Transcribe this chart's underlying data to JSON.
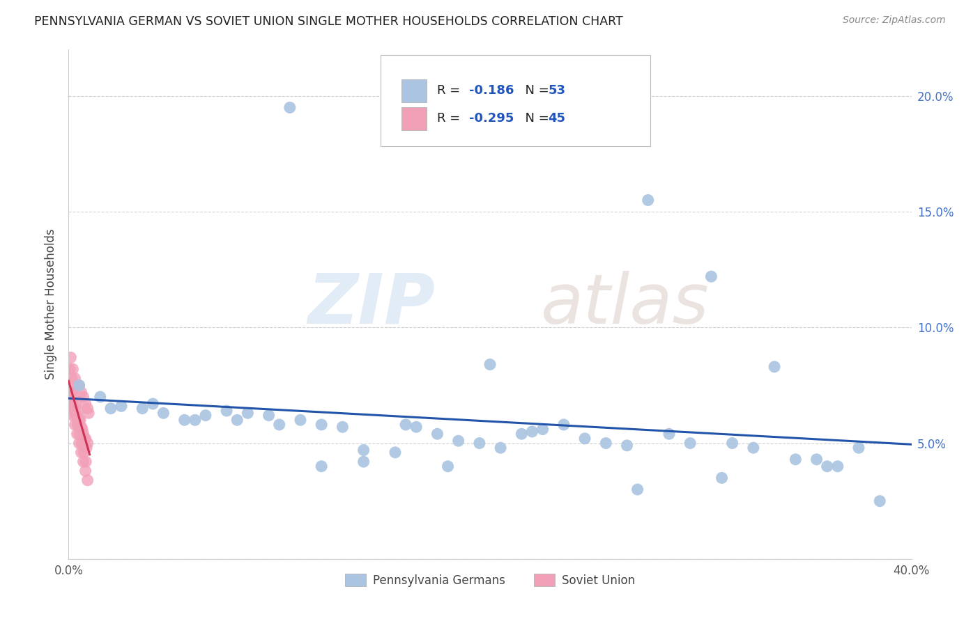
{
  "title": "PENNSYLVANIA GERMAN VS SOVIET UNION SINGLE MOTHER HOUSEHOLDS CORRELATION CHART",
  "source": "Source: ZipAtlas.com",
  "ylabel": "Single Mother Households",
  "xlim": [
    0.0,
    0.4
  ],
  "ylim": [
    0.0,
    0.22
  ],
  "legend_r1": "-0.186",
  "legend_n1": "53",
  "legend_r2": "-0.295",
  "legend_n2": "45",
  "blue_color": "#aac4e2",
  "pink_color": "#f2a0b8",
  "blue_line_color": "#2255aa",
  "pink_line_color": "#cc3355",
  "watermark_zip": "ZIP",
  "watermark_atlas": "atlas",
  "grid_color": "#cccccc",
  "spine_color": "#cccccc",
  "title_color": "#222222",
  "source_color": "#888888",
  "ylabel_color": "#444444",
  "right_tick_color": "#4472c4",
  "legend_text_color": "#222222",
  "legend_value_color": "#2255bb",
  "blue_x": [
    0.105,
    0.005,
    0.015,
    0.025,
    0.035,
    0.045,
    0.055,
    0.065,
    0.075,
    0.085,
    0.095,
    0.11,
    0.12,
    0.13,
    0.14,
    0.155,
    0.165,
    0.175,
    0.185,
    0.195,
    0.205,
    0.215,
    0.225,
    0.235,
    0.245,
    0.255,
    0.265,
    0.275,
    0.285,
    0.295,
    0.305,
    0.315,
    0.325,
    0.335,
    0.345,
    0.355,
    0.365,
    0.375,
    0.385,
    0.02,
    0.04,
    0.06,
    0.08,
    0.1,
    0.12,
    0.14,
    0.16,
    0.18,
    0.2,
    0.22,
    0.27,
    0.31,
    0.36
  ],
  "blue_y": [
    0.195,
    0.075,
    0.07,
    0.066,
    0.065,
    0.063,
    0.06,
    0.062,
    0.064,
    0.063,
    0.062,
    0.06,
    0.058,
    0.057,
    0.047,
    0.046,
    0.057,
    0.054,
    0.051,
    0.05,
    0.048,
    0.054,
    0.056,
    0.058,
    0.052,
    0.05,
    0.049,
    0.155,
    0.054,
    0.05,
    0.122,
    0.05,
    0.048,
    0.083,
    0.043,
    0.043,
    0.04,
    0.048,
    0.025,
    0.065,
    0.067,
    0.06,
    0.06,
    0.058,
    0.04,
    0.042,
    0.058,
    0.04,
    0.084,
    0.055,
    0.03,
    0.035,
    0.04
  ],
  "pink_x": [
    0.001,
    0.002,
    0.003,
    0.004,
    0.005,
    0.006,
    0.007,
    0.008,
    0.009,
    0.0095,
    0.001,
    0.002,
    0.003,
    0.004,
    0.005,
    0.006,
    0.007,
    0.008,
    0.009,
    0.0005,
    0.0015,
    0.0025,
    0.0035,
    0.0045,
    0.0055,
    0.0065,
    0.0075,
    0.0085,
    0.001,
    0.002,
    0.003,
    0.004,
    0.005,
    0.006,
    0.007,
    0.008,
    0.009,
    0.0012,
    0.0022,
    0.0032,
    0.0042,
    0.0052,
    0.0062,
    0.0072,
    0.0082
  ],
  "pink_y": [
    0.087,
    0.082,
    0.078,
    0.075,
    0.075,
    0.072,
    0.07,
    0.067,
    0.065,
    0.063,
    0.072,
    0.068,
    0.065,
    0.062,
    0.06,
    0.057,
    0.054,
    0.052,
    0.05,
    0.082,
    0.078,
    0.073,
    0.068,
    0.064,
    0.06,
    0.056,
    0.052,
    0.048,
    0.065,
    0.062,
    0.058,
    0.054,
    0.05,
    0.046,
    0.042,
    0.038,
    0.034,
    0.07,
    0.066,
    0.062,
    0.058,
    0.054,
    0.05,
    0.046,
    0.042
  ]
}
